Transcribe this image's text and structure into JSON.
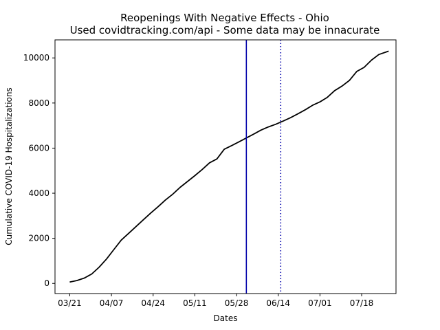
{
  "chart_data": {
    "type": "line",
    "title": "Reopenings With Negative Effects - Ohio",
    "subtitle": "Used covidtracking.com/api - Some data may be innacurate",
    "xlabel": "Dates",
    "ylabel": "Cumulative COVID-19 Hospitalizations",
    "x_start": "03/21",
    "x_end": "07/29",
    "xlim": [
      "03/15",
      "08/01"
    ],
    "ylim": [
      -450,
      10800
    ],
    "x_ticks": [
      "03/21",
      "04/07",
      "04/24",
      "05/11",
      "05/28",
      "06/14",
      "07/01",
      "07/18"
    ],
    "y_ticks": [
      0,
      2000,
      4000,
      6000,
      8000,
      10000
    ],
    "grid": false,
    "legend": "none",
    "series": [
      {
        "color": "#000000",
        "x": [
          "03/21",
          "03/24",
          "03/27",
          "03/30",
          "04/02",
          "04/05",
          "04/08",
          "04/11",
          "04/14",
          "04/17",
          "04/20",
          "04/23",
          "04/26",
          "04/29",
          "05/02",
          "05/05",
          "05/08",
          "05/11",
          "05/14",
          "05/17",
          "05/20",
          "05/23",
          "05/26",
          "05/29",
          "06/01",
          "06/04",
          "06/07",
          "06/10",
          "06/13",
          "06/16",
          "06/19",
          "06/22",
          "06/25",
          "06/28",
          "07/01",
          "07/04",
          "07/07",
          "07/10",
          "07/13",
          "07/16",
          "07/19",
          "07/22",
          "07/25",
          "07/29"
        ],
        "values": [
          60,
          130,
          240,
          420,
          720,
          1080,
          1500,
          1920,
          2220,
          2520,
          2820,
          3120,
          3400,
          3700,
          3960,
          4260,
          4520,
          4780,
          5050,
          5350,
          5520,
          5950,
          6110,
          6280,
          6450,
          6620,
          6800,
          6940,
          7060,
          7200,
          7350,
          7520,
          7700,
          7900,
          8050,
          8250,
          8550,
          8750,
          9000,
          9400,
          9580,
          9900,
          10150,
          10300
        ]
      }
    ],
    "vlines": [
      {
        "x": "06/01",
        "color": "#0000aa",
        "style": "solid"
      },
      {
        "x": "06/15",
        "color": "#0000aa",
        "style": "dotted"
      }
    ]
  }
}
